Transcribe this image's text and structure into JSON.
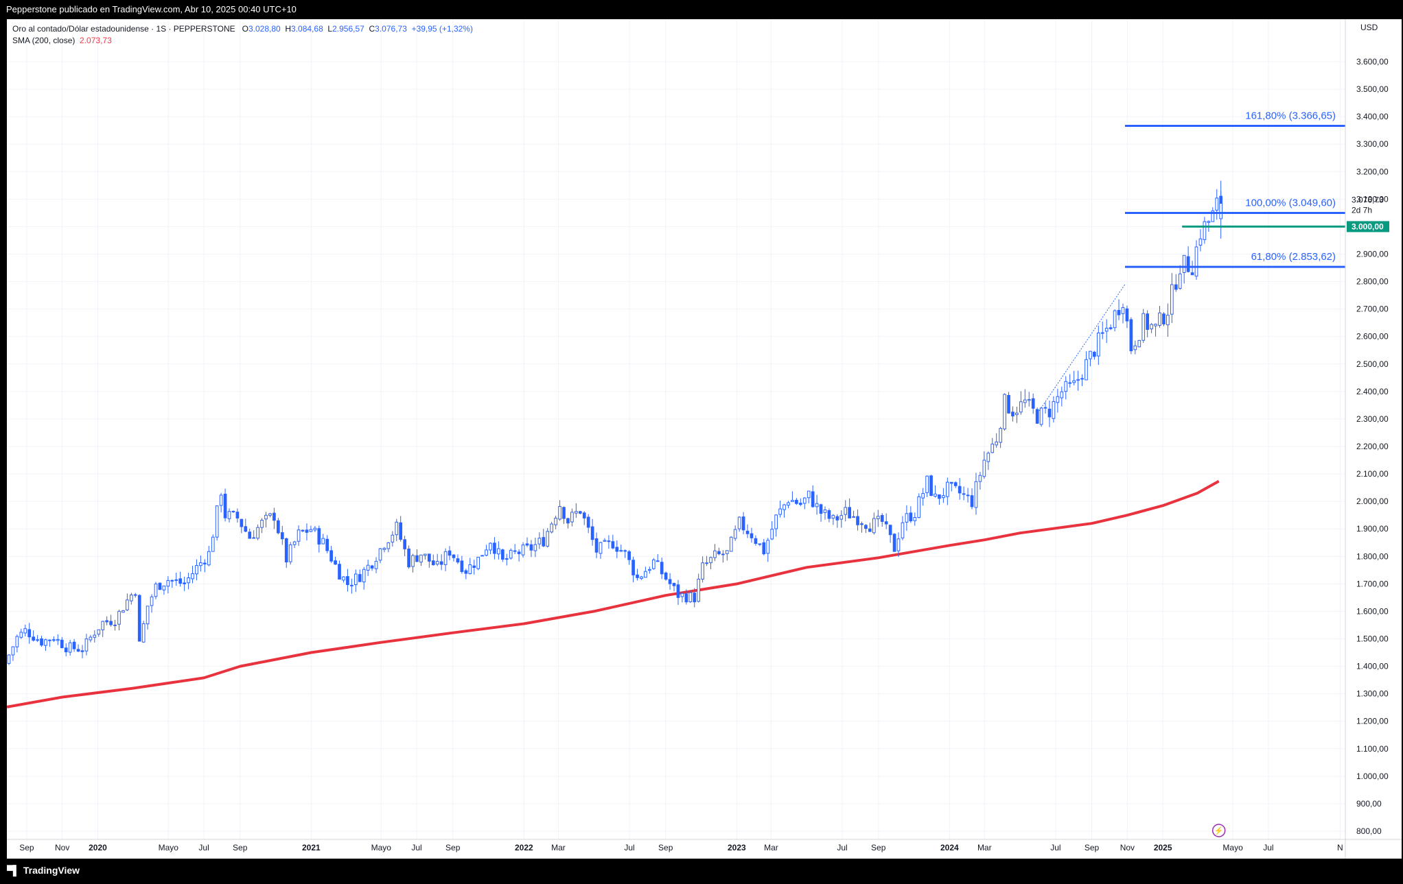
{
  "header": {
    "title": "Pepperstone publicado en TradingView.com, Abr 10, 2025 00:40 UTC+10"
  },
  "legend": {
    "symbol": "Oro al contado/Dólar estadounidense · 1S · PEPPERSTONE",
    "o_label": "O",
    "o_value": "3.028,80",
    "h_label": "H",
    "h_value": "3.084,68",
    "l_label": "L",
    "l_value": "2.956,57",
    "c_label": "C",
    "c_value": "3.076,73",
    "change": "+39,95 (+1,32%)",
    "sma_label": "SMA (200, close)",
    "sma_value": "2.073,73"
  },
  "footer": {
    "brand": "TradingView"
  },
  "chart_data": {
    "type": "candlestick",
    "currency": "USD",
    "y_range": [
      780,
      3720
    ],
    "y_ticks": [
      800,
      900,
      1000,
      1100,
      1200,
      1300,
      1400,
      1500,
      1600,
      1700,
      1800,
      1900,
      2000,
      2100,
      2200,
      2300,
      2400,
      2500,
      2600,
      2700,
      2800,
      2900,
      3000,
      3100,
      3200,
      3300,
      3400,
      3500,
      3600
    ],
    "y_tick_labels": [
      "800,00",
      "900,00",
      "1.000,00",
      "1.100,00",
      "1.200,00",
      "1.300,00",
      "1.400,00",
      "1.500,00",
      "1.600,00",
      "1.700,00",
      "1.800,00",
      "1.900,00",
      "2.000,00",
      "2.100,00",
      "2.200,00",
      "2.300,00",
      "2.400,00",
      "2.500,00",
      "2.600,00",
      "2.700,00",
      "2.800,00",
      "2.900,00",
      "3.000,00",
      "3.100,00",
      "3.200,00",
      "3.300,00",
      "3.400,00",
      "3.500,00",
      "3.600,00"
    ],
    "x_range": [
      "2019-07-29",
      "2025-11-10"
    ],
    "x_ticks": [
      {
        "date": "2019-09-01",
        "label": "Sep",
        "bold": false
      },
      {
        "date": "2019-11-01",
        "label": "Nov",
        "bold": false
      },
      {
        "date": "2020-01-01",
        "label": "2020",
        "bold": true
      },
      {
        "date": "2020-05-01",
        "label": "Mayo",
        "bold": false
      },
      {
        "date": "2020-07-01",
        "label": "Jul",
        "bold": false
      },
      {
        "date": "2020-09-01",
        "label": "Sep",
        "bold": false
      },
      {
        "date": "2021-01-01",
        "label": "2021",
        "bold": true
      },
      {
        "date": "2021-05-01",
        "label": "Mayo",
        "bold": false
      },
      {
        "date": "2021-07-01",
        "label": "Jul",
        "bold": false
      },
      {
        "date": "2021-09-01",
        "label": "Sep",
        "bold": false
      },
      {
        "date": "2022-01-01",
        "label": "2022",
        "bold": true
      },
      {
        "date": "2022-03-01",
        "label": "Mar",
        "bold": false
      },
      {
        "date": "2022-07-01",
        "label": "Jul",
        "bold": false
      },
      {
        "date": "2022-09-01",
        "label": "Sep",
        "bold": false
      },
      {
        "date": "2023-01-01",
        "label": "2023",
        "bold": true
      },
      {
        "date": "2023-03-01",
        "label": "Mar",
        "bold": false
      },
      {
        "date": "2023-07-01",
        "label": "Jul",
        "bold": false
      },
      {
        "date": "2023-09-01",
        "label": "Sep",
        "bold": false
      },
      {
        "date": "2024-01-01",
        "label": "2024",
        "bold": true
      },
      {
        "date": "2024-03-01",
        "label": "Mar",
        "bold": false
      },
      {
        "date": "2024-07-01",
        "label": "Jul",
        "bold": false
      },
      {
        "date": "2024-09-01",
        "label": "Sep",
        "bold": false
      },
      {
        "date": "2024-11-01",
        "label": "Nov",
        "bold": false
      },
      {
        "date": "2025-01-01",
        "label": "2025",
        "bold": true
      },
      {
        "date": "2025-05-01",
        "label": "Mayo",
        "bold": false
      },
      {
        "date": "2025-07-01",
        "label": "Jul",
        "bold": false
      },
      {
        "date": "2025-11-01",
        "label": "N",
        "bold": false
      }
    ],
    "price_path": [
      [
        "2019-07-29",
        1410
      ],
      [
        "2019-08-19",
        1505
      ],
      [
        "2019-09-02",
        1530
      ],
      [
        "2019-09-30",
        1490
      ],
      [
        "2019-10-21",
        1505
      ],
      [
        "2019-11-11",
        1470
      ],
      [
        "2019-12-09",
        1462
      ],
      [
        "2019-12-30",
        1525
      ],
      [
        "2020-01-13",
        1560
      ],
      [
        "2020-02-03",
        1570
      ],
      [
        "2020-02-24",
        1640
      ],
      [
        "2020-03-09",
        1680
      ],
      [
        "2020-03-16",
        1480
      ],
      [
        "2020-03-30",
        1620
      ],
      [
        "2020-04-13",
        1690
      ],
      [
        "2020-05-04",
        1715
      ],
      [
        "2020-06-01",
        1700
      ],
      [
        "2020-06-22",
        1760
      ],
      [
        "2020-07-13",
        1810
      ],
      [
        "2020-07-27",
        1960
      ],
      [
        "2020-08-03",
        2040
      ],
      [
        "2020-08-10",
        1950
      ],
      [
        "2020-08-31",
        1940
      ],
      [
        "2020-09-21",
        1870
      ],
      [
        "2020-10-12",
        1920
      ],
      [
        "2020-11-02",
        1950
      ],
      [
        "2020-11-23",
        1790
      ],
      [
        "2020-12-14",
        1880
      ],
      [
        "2021-01-04",
        1900
      ],
      [
        "2021-01-25",
        1850
      ],
      [
        "2021-02-22",
        1740
      ],
      [
        "2021-03-08",
        1700
      ],
      [
        "2021-03-29",
        1730
      ],
      [
        "2021-04-19",
        1780
      ],
      [
        "2021-05-10",
        1850
      ],
      [
        "2021-05-31",
        1905
      ],
      [
        "2021-06-21",
        1780
      ],
      [
        "2021-07-12",
        1810
      ],
      [
        "2021-08-09",
        1760
      ],
      [
        "2021-08-30",
        1820
      ],
      [
        "2021-09-27",
        1750
      ],
      [
        "2021-10-18",
        1790
      ],
      [
        "2021-11-08",
        1860
      ],
      [
        "2021-11-29",
        1780
      ],
      [
        "2021-12-20",
        1810
      ],
      [
        "2022-01-17",
        1830
      ],
      [
        "2022-02-07",
        1860
      ],
      [
        "2022-03-07",
        1990
      ],
      [
        "2022-03-21",
        1930
      ],
      [
        "2022-04-11",
        1970
      ],
      [
        "2022-05-09",
        1820
      ],
      [
        "2022-06-06",
        1850
      ],
      [
        "2022-06-27",
        1810
      ],
      [
        "2022-07-18",
        1720
      ],
      [
        "2022-08-15",
        1780
      ],
      [
        "2022-09-05",
        1720
      ],
      [
        "2022-09-26",
        1660
      ],
      [
        "2022-10-24",
        1650
      ],
      [
        "2022-11-07",
        1760
      ],
      [
        "2022-11-28",
        1800
      ],
      [
        "2022-12-19",
        1810
      ],
      [
        "2023-01-09",
        1920
      ],
      [
        "2023-01-30",
        1880
      ],
      [
        "2023-02-20",
        1820
      ],
      [
        "2023-03-13",
        1940
      ],
      [
        "2023-04-03",
        2010
      ],
      [
        "2023-04-24",
        1990
      ],
      [
        "2023-05-08",
        2020
      ],
      [
        "2023-05-29",
        1960
      ],
      [
        "2023-06-19",
        1930
      ],
      [
        "2023-07-10",
        1960
      ],
      [
        "2023-07-31",
        1940
      ],
      [
        "2023-08-21",
        1915
      ],
      [
        "2023-09-11",
        1925
      ],
      [
        "2023-10-02",
        1830
      ],
      [
        "2023-10-16",
        1930
      ],
      [
        "2023-11-06",
        1960
      ],
      [
        "2023-11-27",
        2070
      ],
      [
        "2023-12-11",
        2010
      ],
      [
        "2024-01-01",
        2045
      ],
      [
        "2024-01-22",
        2030
      ],
      [
        "2024-02-12",
        2000
      ],
      [
        "2024-03-04",
        2150
      ],
      [
        "2024-03-25",
        2230
      ],
      [
        "2024-04-08",
        2360
      ],
      [
        "2024-04-22",
        2330
      ],
      [
        "2024-05-13",
        2360
      ],
      [
        "2024-06-03",
        2310
      ],
      [
        "2024-06-24",
        2330
      ],
      [
        "2024-07-15",
        2400
      ],
      [
        "2024-08-05",
        2420
      ],
      [
        "2024-08-26",
        2500
      ],
      [
        "2024-09-16",
        2580
      ],
      [
        "2024-10-07",
        2650
      ],
      [
        "2024-10-28",
        2740
      ],
      [
        "2024-11-11",
        2560
      ],
      [
        "2024-12-02",
        2650
      ],
      [
        "2024-12-23",
        2630
      ],
      [
        "2025-01-13",
        2700
      ],
      [
        "2025-02-03",
        2860
      ],
      [
        "2025-02-24",
        2860
      ],
      [
        "2025-03-10",
        2980
      ],
      [
        "2025-03-31",
        3040
      ],
      [
        "2025-04-07",
        3076.73
      ]
    ],
    "sma_200": [
      [
        "2019-07-29",
        1252
      ],
      [
        "2019-11-01",
        1288
      ],
      [
        "2020-03-01",
        1320
      ],
      [
        "2020-07-01",
        1358
      ],
      [
        "2020-09-01",
        1400
      ],
      [
        "2021-01-01",
        1450
      ],
      [
        "2021-05-01",
        1487
      ],
      [
        "2021-09-01",
        1522
      ],
      [
        "2022-01-01",
        1555
      ],
      [
        "2022-05-01",
        1600
      ],
      [
        "2022-09-01",
        1658
      ],
      [
        "2023-01-01",
        1700
      ],
      [
        "2023-05-01",
        1760
      ],
      [
        "2023-09-01",
        1795
      ],
      [
        "2024-01-01",
        1840
      ],
      [
        "2024-03-01",
        1860
      ],
      [
        "2024-05-01",
        1885
      ],
      [
        "2024-09-01",
        1920
      ],
      [
        "2024-11-01",
        1950
      ],
      [
        "2025-01-01",
        1985
      ],
      [
        "2025-03-01",
        2030
      ],
      [
        "2025-04-07",
        2073.73
      ]
    ],
    "fib_levels": [
      {
        "label": "161,80% (3.366,65)",
        "value": 3366.65,
        "from": "2024-10-28"
      },
      {
        "label": "100,00% (3.049,60)",
        "value": 3049.6,
        "from": "2024-10-28"
      },
      {
        "label": "61,80% (2.853,62)",
        "value": 2853.62,
        "from": "2024-10-28"
      }
    ],
    "trendline": {
      "from": [
        "2024-06-03",
        2330
      ],
      "to": [
        "2024-10-28",
        2790
      ]
    },
    "key_level": {
      "value": 3000,
      "label": "3.000,00",
      "from": "2025-02-03"
    },
    "last_price": {
      "value": 3076.73,
      "label": "3.076,73",
      "countdown": "2d 7h"
    },
    "colors": {
      "up": "#2962ff",
      "down": "#2962ff",
      "sma": "#e8333f",
      "fib": "#2962ff",
      "level": "#089981",
      "grid": "#f0f3fa"
    }
  }
}
